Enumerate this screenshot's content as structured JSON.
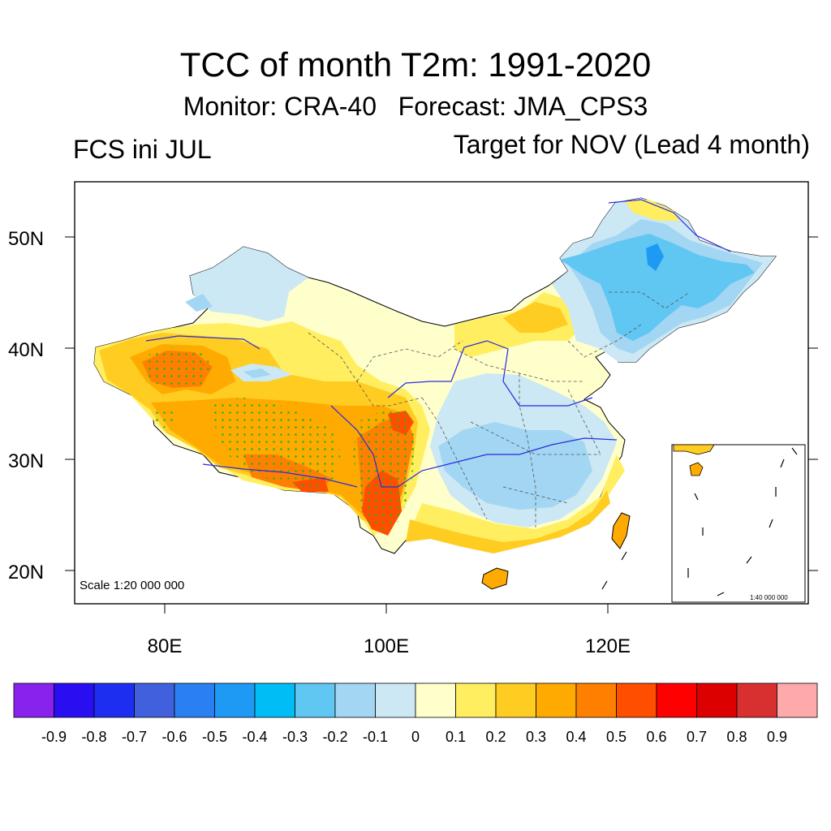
{
  "title": "TCC of month T2m: 1991-2020",
  "subtitle": "Monitor: CRA-40   Forecast: JMA_CPS3",
  "left_label": "FCS ini JUL",
  "right_label": "Target for NOV (Lead 4 month)",
  "map": {
    "lat_labels": [
      "50N",
      "40N",
      "30N",
      "20N"
    ],
    "lon_labels": [
      "80E",
      "100E",
      "120E"
    ],
    "scale_main": "Scale 1:20 000 000",
    "scale_inset": "1:40 000 000"
  },
  "colorbar": {
    "labels": [
      "-0.9",
      "-0.8",
      "-0.7",
      "-0.6",
      "-0.5",
      "-0.4",
      "-0.3",
      "-0.2",
      "-0.1",
      "0",
      "0.1",
      "0.2",
      "0.3",
      "0.4",
      "0.5",
      "0.6",
      "0.7",
      "0.8",
      "0.9"
    ],
    "colors": [
      "#8a22ee",
      "#2a0ef2",
      "#1e2ef0",
      "#4060de",
      "#2a80f2",
      "#1e9af5",
      "#00bef5",
      "#60c6f2",
      "#a2d6f2",
      "#cce8f5",
      "#ffffcc",
      "#ffee60",
      "#ffcc22",
      "#ffaa00",
      "#ff8000",
      "#ff4e00",
      "#ff0000",
      "#dd0000",
      "#d83030",
      "#ffaaaa"
    ]
  }
}
